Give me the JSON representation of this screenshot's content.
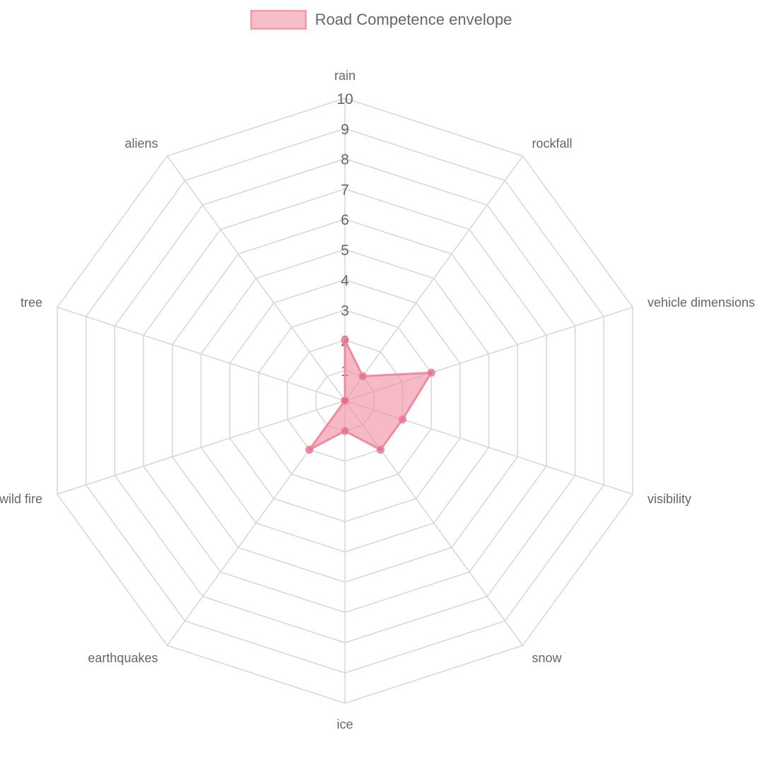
{
  "chart_data": {
    "type": "radar",
    "title": "",
    "legend": {
      "position": "top",
      "entries": [
        "Road Competence envelope"
      ]
    },
    "axes": [
      "rain",
      "rockfall",
      "vehicle dimensions",
      "visibility",
      "snow",
      "ice",
      "earthquakes",
      "wild fire",
      "tree",
      "aliens"
    ],
    "r_range": [
      0,
      10
    ],
    "ticks": [
      "1",
      "2",
      "3",
      "4",
      "5",
      "6",
      "7",
      "8",
      "9",
      "10"
    ],
    "grid": true,
    "series": [
      {
        "name": "Road Competence envelope",
        "values": [
          2,
          1,
          3,
          2,
          2,
          1,
          2,
          0,
          0,
          0
        ],
        "color": "#f08aa0",
        "fill": "rgba(240,140,160,0.6)"
      }
    ]
  }
}
